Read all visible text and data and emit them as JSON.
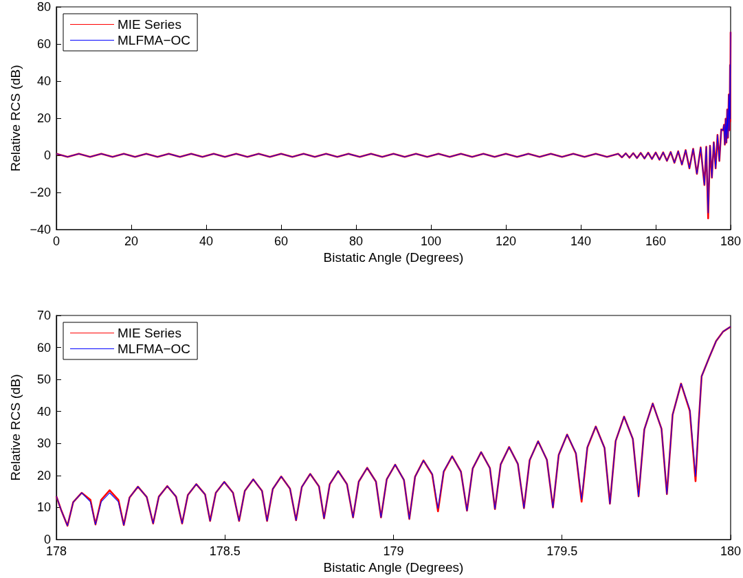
{
  "chart_data": [
    {
      "type": "line",
      "xlabel": "Bistatic Angle (Degrees)",
      "ylabel": "Relative RCS (dB)",
      "xlim": [
        0,
        180
      ],
      "ylim": [
        -40,
        80
      ],
      "xticks": [
        0,
        20,
        40,
        60,
        80,
        100,
        120,
        140,
        160,
        180
      ],
      "yticks": [
        {
          "value": -40,
          "label": "−40"
        },
        {
          "value": -20,
          "label": "−20"
        },
        0,
        20,
        40,
        60,
        80
      ],
      "legend": "top left",
      "grid": false,
      "x": [
        0,
        3,
        6,
        9,
        12,
        15,
        18,
        21,
        24,
        27,
        30,
        33,
        36,
        39,
        42,
        45,
        48,
        51,
        54,
        57,
        60,
        63,
        66,
        69,
        72,
        75,
        78,
        81,
        84,
        87,
        90,
        93,
        96,
        99,
        102,
        105,
        108,
        111,
        114,
        117,
        120,
        123,
        126,
        129,
        132,
        135,
        138,
        141,
        144,
        147,
        150,
        151,
        152,
        153,
        154,
        155,
        156,
        157,
        158,
        159,
        160,
        161,
        162,
        163,
        164,
        165,
        166,
        167,
        168,
        169,
        170,
        171,
        172,
        173,
        173.5,
        174,
        174.5,
        175,
        175.5,
        176,
        176.5,
        177,
        177.5,
        178,
        178.242,
        178.456,
        178.667,
        178.88,
        179.089,
        179.301,
        179.515,
        179.727,
        179.853,
        179.896,
        180
      ],
      "series": [
        {
          "name": "MIE Series",
          "color": "#ff0000",
          "values": [
            0.8,
            -0.8,
            0.8,
            -0.8,
            0.8,
            -0.8,
            0.8,
            -0.8,
            0.8,
            -0.8,
            0.8,
            -0.8,
            0.8,
            -0.8,
            0.8,
            -0.8,
            0.8,
            -0.8,
            0.8,
            -0.8,
            0.8,
            -0.8,
            0.8,
            -0.8,
            0.8,
            -0.8,
            0.8,
            -0.8,
            0.8,
            -0.8,
            0.8,
            -0.8,
            0.8,
            -0.8,
            0.8,
            -0.8,
            0.8,
            -0.8,
            0.8,
            -0.8,
            0.8,
            -0.8,
            0.8,
            -0.8,
            0.8,
            -0.8,
            0.8,
            -0.8,
            0.8,
            -0.8,
            0.8,
            -1.1,
            1.1,
            -1.3,
            1.2,
            -1.5,
            1.3,
            -1.7,
            1.4,
            -2,
            1.5,
            -2.4,
            1.6,
            -3,
            1.8,
            -4,
            2.2,
            -5,
            2.8,
            -7,
            3.5,
            -10,
            4.2,
            -16,
            4.6,
            -34,
            5.2,
            -12,
            7,
            -7,
            11,
            -3,
            14,
            13.5,
            16.5,
            5.8,
            19.7,
            6.9,
            24.7,
            9.5,
            32.8,
            13.5,
            48.7,
            18.2,
            66.5
          ]
        },
        {
          "name": "MLFMA−OC",
          "color": "#0000ff",
          "values": [
            0.8,
            -0.8,
            0.8,
            -0.8,
            0.8,
            -0.8,
            0.8,
            -0.8,
            0.8,
            -0.8,
            0.8,
            -0.8,
            0.8,
            -0.8,
            0.8,
            -0.8,
            0.8,
            -0.8,
            0.8,
            -0.8,
            0.8,
            -0.8,
            0.8,
            -0.8,
            0.8,
            -0.8,
            0.8,
            -0.8,
            0.8,
            -0.8,
            0.8,
            -0.8,
            0.8,
            -0.8,
            0.8,
            -0.8,
            0.8,
            -0.8,
            0.8,
            -0.8,
            0.8,
            -0.8,
            0.8,
            -0.8,
            0.8,
            -0.8,
            0.8,
            -0.8,
            0.8,
            -0.8,
            0.8,
            -1.1,
            1.1,
            -1.3,
            1.2,
            -1.5,
            1.3,
            -1.7,
            1.4,
            -2,
            1.5,
            -2.4,
            1.6,
            -3,
            1.8,
            -4,
            2.2,
            -5,
            2.8,
            -7,
            3.5,
            -10,
            4.2,
            -16,
            4.6,
            -31,
            5.2,
            -12,
            7,
            -7,
            11,
            -3,
            14,
            13.5,
            16.5,
            5.8,
            19.7,
            6.9,
            24.7,
            9.5,
            32.8,
            13.5,
            48.7,
            19.7,
            66.5
          ]
        }
      ]
    },
    {
      "type": "line",
      "xlabel": "Bistatic Angle (Degrees)",
      "ylabel": "Relative RCS (dB)",
      "xlim": [
        178,
        180
      ],
      "ylim": [
        0,
        70
      ],
      "xticks": [
        178,
        178.5,
        179,
        179.5,
        180
      ],
      "yticks": [
        0,
        10,
        20,
        30,
        40,
        50,
        60,
        70
      ],
      "legend": "top left",
      "grid": false,
      "x": [
        178,
        178.015,
        178.033,
        178.05,
        178.075,
        178.101,
        178.116,
        178.133,
        178.158,
        178.184,
        178.2,
        178.217,
        178.242,
        178.268,
        178.287,
        178.304,
        178.329,
        178.355,
        178.373,
        178.39,
        178.415,
        178.441,
        178.456,
        178.473,
        178.498,
        178.524,
        178.542,
        178.559,
        178.584,
        178.61,
        178.625,
        178.642,
        178.667,
        178.693,
        178.711,
        178.728,
        178.753,
        178.779,
        178.794,
        178.811,
        178.836,
        178.862,
        178.88,
        178.897,
        178.922,
        178.948,
        178.963,
        178.98,
        179.005,
        179.031,
        179.047,
        179.064,
        179.089,
        179.115,
        179.132,
        179.149,
        179.174,
        179.2,
        179.218,
        179.235,
        179.26,
        179.286,
        179.301,
        179.318,
        179.343,
        179.369,
        179.387,
        179.404,
        179.429,
        179.455,
        179.473,
        179.49,
        179.515,
        179.541,
        179.558,
        179.575,
        179.6,
        179.626,
        179.642,
        179.659,
        179.684,
        179.71,
        179.727,
        179.744,
        179.769,
        179.795,
        179.811,
        179.828,
        179.853,
        179.879,
        179.896,
        179.905,
        179.914,
        179.937,
        179.957,
        179.978,
        180
      ],
      "series": [
        {
          "name": "MIE Series",
          "color": "#ff0000",
          "values": [
            13.5,
            9.0,
            4.3,
            11.7,
            14.6,
            12.4,
            4.7,
            12.4,
            15.4,
            12.4,
            4.5,
            13.1,
            16.5,
            13.3,
            5.0,
            13.4,
            16.7,
            13.4,
            5.0,
            13.9,
            17.3,
            14.1,
            5.8,
            14.6,
            18.0,
            14.6,
            5.8,
            15.2,
            18.8,
            15.2,
            5.8,
            15.8,
            19.7,
            15.9,
            6.0,
            16.4,
            20.5,
            16.6,
            6.6,
            17.3,
            21.4,
            17.3,
            6.9,
            18.1,
            22.4,
            18.1,
            6.9,
            18.8,
            23.4,
            18.6,
            6.4,
            19.6,
            24.7,
            20.3,
            8.8,
            21.2,
            26.0,
            21.2,
            9.0,
            22.2,
            27.3,
            22.3,
            9.5,
            23.5,
            28.9,
            23.6,
            9.8,
            24.8,
            30.7,
            24.9,
            10.0,
            26.4,
            32.8,
            26.9,
            11.8,
            28.7,
            35.3,
            28.6,
            11.2,
            30.8,
            38.4,
            31.4,
            13.5,
            34.4,
            42.5,
            34.6,
            14.2,
            39.0,
            48.7,
            40.2,
            18.2,
            36,
            51,
            57,
            62,
            65,
            66.5
          ]
        },
        {
          "name": "MLFMA−OC",
          "color": "#0000ff",
          "values": [
            13.5,
            9.0,
            4.3,
            11.7,
            14.6,
            11.8,
            4.7,
            11.8,
            14.6,
            11.8,
            4.5,
            13.1,
            16.5,
            13.3,
            5.0,
            13.4,
            16.7,
            13.4,
            5.0,
            13.9,
            17.3,
            14.1,
            5.8,
            14.6,
            18.0,
            14.6,
            5.8,
            15.2,
            18.8,
            15.2,
            5.8,
            15.8,
            19.7,
            15.9,
            6.0,
            16.4,
            20.5,
            16.6,
            6.6,
            17.3,
            21.4,
            17.3,
            6.9,
            18.1,
            22.4,
            18.1,
            6.9,
            18.8,
            23.4,
            18.6,
            6.4,
            19.6,
            24.7,
            20.5,
            9.7,
            21.4,
            26.0,
            21.2,
            9.0,
            22.2,
            27.3,
            22.3,
            9.5,
            23.5,
            28.9,
            23.6,
            9.8,
            24.8,
            30.7,
            24.9,
            10.0,
            26.4,
            32.8,
            27.1,
            12.5,
            28.9,
            35.3,
            28.6,
            11.2,
            30.8,
            38.4,
            31.4,
            13.5,
            34.4,
            42.5,
            34.6,
            14.2,
            39.0,
            48.7,
            40.6,
            19.7,
            36,
            51,
            57,
            62,
            65,
            66.5
          ]
        }
      ]
    }
  ]
}
